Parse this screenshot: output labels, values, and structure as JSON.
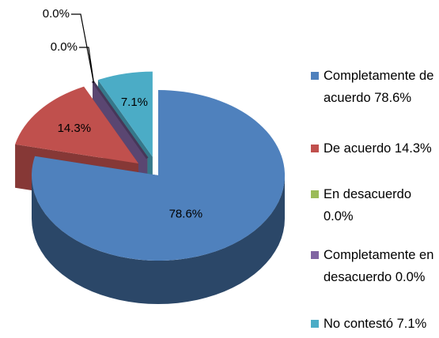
{
  "chart_data": {
    "type": "pie",
    "categories": [
      "Completamente de acuerdo 78.6%",
      "De acuerdo 14.3%",
      "En desacuerdo 0.0%",
      "Completamente en desacuerdo 0.0%",
      "No contestó 7.1%"
    ],
    "values": [
      78.6,
      14.3,
      0.0,
      0.0,
      7.1
    ],
    "value_labels": [
      "78.6%",
      "14.3%",
      "0.0%",
      "0.0%",
      "7.1%"
    ],
    "colors": [
      "#4f81bd",
      "#c0504d",
      "#9bbb59",
      "#8064a2",
      "#4bacc6"
    ],
    "legend": "right"
  }
}
